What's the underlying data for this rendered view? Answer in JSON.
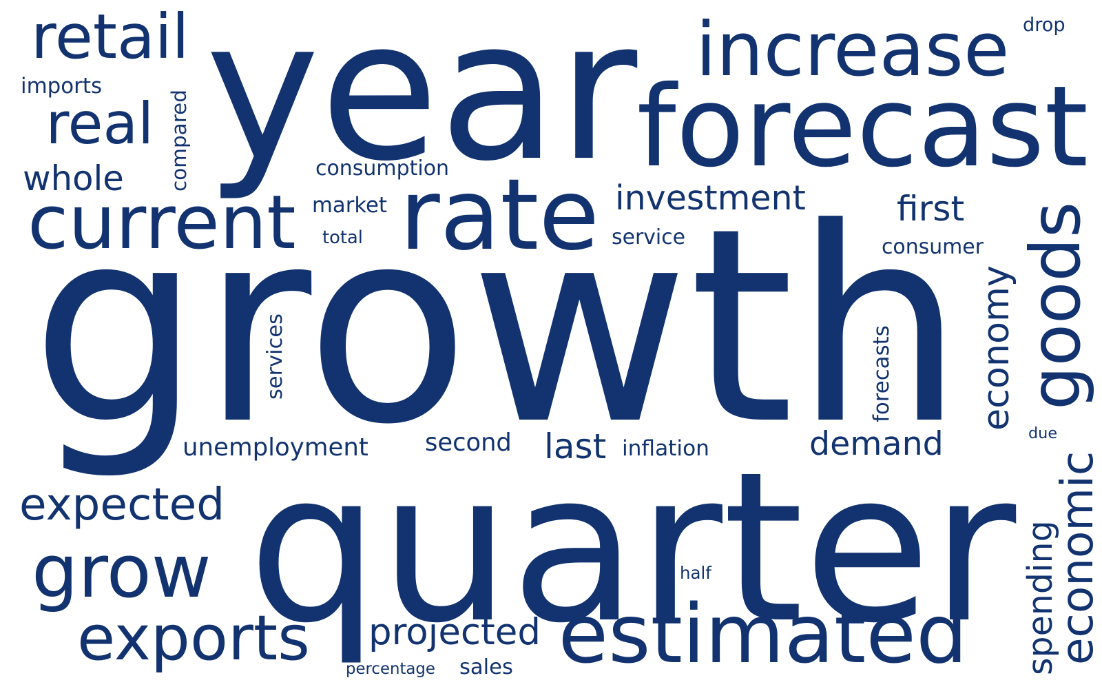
{
  "colors": {
    "background": "#ffffff",
    "word": "#12336f"
  },
  "words": [
    {
      "text": "growth",
      "orientation": "horizontal"
    },
    {
      "text": "quarter",
      "orientation": "horizontal"
    },
    {
      "text": "year",
      "orientation": "horizontal"
    },
    {
      "text": "forecast",
      "orientation": "horizontal"
    },
    {
      "text": "rate",
      "orientation": "horizontal"
    },
    {
      "text": "estimated",
      "orientation": "horizontal"
    },
    {
      "text": "increase",
      "orientation": "horizontal"
    },
    {
      "text": "current",
      "orientation": "horizontal"
    },
    {
      "text": "goods",
      "orientation": "vertical"
    },
    {
      "text": "grow",
      "orientation": "horizontal"
    },
    {
      "text": "exports",
      "orientation": "horizontal"
    },
    {
      "text": "retail",
      "orientation": "horizontal"
    },
    {
      "text": "economic",
      "orientation": "vertical"
    },
    {
      "text": "real",
      "orientation": "horizontal"
    },
    {
      "text": "expected",
      "orientation": "horizontal"
    },
    {
      "text": "projected",
      "orientation": "horizontal"
    },
    {
      "text": "investment",
      "orientation": "horizontal"
    },
    {
      "text": "demand",
      "orientation": "horizontal"
    },
    {
      "text": "spending",
      "orientation": "vertical"
    },
    {
      "text": "economy",
      "orientation": "vertical"
    },
    {
      "text": "last",
      "orientation": "horizontal"
    },
    {
      "text": "first",
      "orientation": "horizontal"
    },
    {
      "text": "whole",
      "orientation": "horizontal"
    },
    {
      "text": "second",
      "orientation": "horizontal"
    },
    {
      "text": "unemployment",
      "orientation": "horizontal"
    },
    {
      "text": "consumption",
      "orientation": "horizontal"
    },
    {
      "text": "inflation",
      "orientation": "horizontal"
    },
    {
      "text": "market",
      "orientation": "horizontal"
    },
    {
      "text": "service",
      "orientation": "horizontal"
    },
    {
      "text": "consumer",
      "orientation": "horizontal"
    },
    {
      "text": "imports",
      "orientation": "horizontal"
    },
    {
      "text": "services",
      "orientation": "vertical"
    },
    {
      "text": "forecasts",
      "orientation": "vertical"
    },
    {
      "text": "compared",
      "orientation": "vertical"
    },
    {
      "text": "sales",
      "orientation": "horizontal"
    },
    {
      "text": "percentage",
      "orientation": "horizontal"
    },
    {
      "text": "total",
      "orientation": "horizontal"
    },
    {
      "text": "half",
      "orientation": "horizontal"
    },
    {
      "text": "due",
      "orientation": "horizontal"
    },
    {
      "text": "drop",
      "orientation": "horizontal"
    }
  ]
}
